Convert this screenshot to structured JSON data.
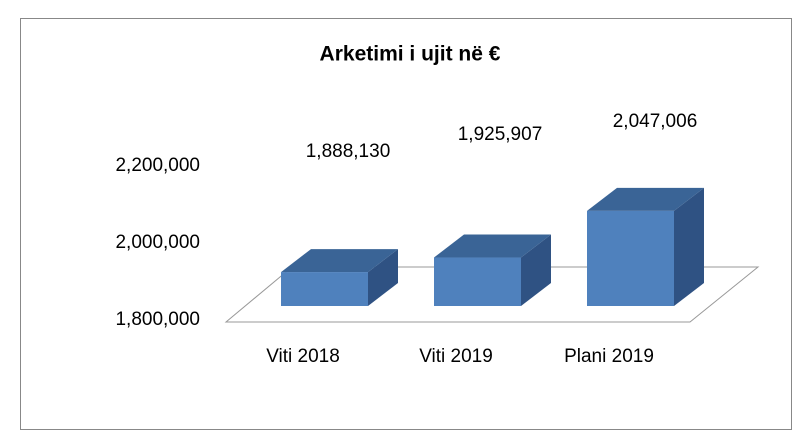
{
  "chart_data": {
    "type": "bar3d",
    "title": "Arketimi  i ujit në €",
    "categories": [
      "Viti 2018",
      "Viti 2019",
      "Plani 2019"
    ],
    "values": [
      1888130,
      1925907,
      2047006
    ],
    "value_labels": [
      "1,888,130",
      "1,925,907",
      "2,047,006"
    ],
    "color": "#4f81bd",
    "ylim": [
      1800000,
      2200000
    ],
    "yticks": [
      {
        "value": 1800000,
        "label": "1,800,000"
      },
      {
        "value": 2000000,
        "label": "2,000,000"
      },
      {
        "value": 2200000,
        "label": "2,200,000"
      }
    ]
  }
}
